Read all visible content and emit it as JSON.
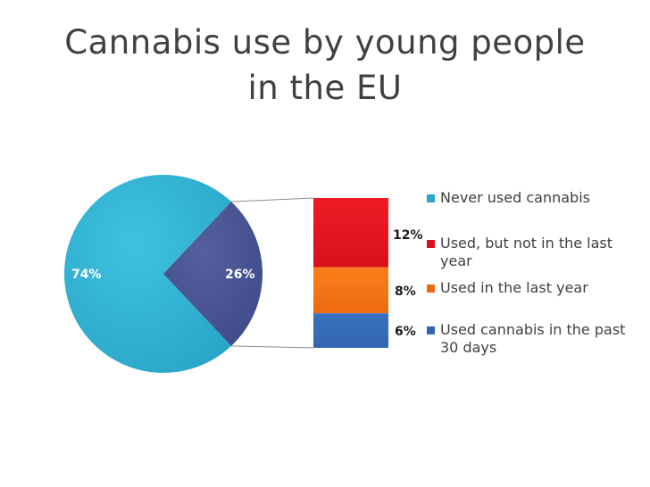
{
  "title": {
    "line1": "Cannabis use by young people",
    "line2": "in the EU"
  },
  "colors": {
    "pie_never": "#2aa6c8",
    "pie_used": "#3f4a8a",
    "bar_not_last_year": "#d8101c",
    "bar_last_year": "#ee6a10",
    "bar_past_30_days": "#3266b0",
    "connector": "#8c8c8c",
    "text": "#404040"
  },
  "chart_data": {
    "type": "bar-of-pie",
    "title": "Cannabis use by young people in the EU",
    "pie": {
      "slices": [
        {
          "label": "74%",
          "value": 74
        },
        {
          "label": "26%",
          "value": 26
        }
      ]
    },
    "bar": {
      "segments": [
        {
          "label": "12%",
          "value": 12
        },
        {
          "label": "8%",
          "value": 8
        },
        {
          "label": "6%",
          "value": 6
        }
      ]
    },
    "legend": [
      {
        "text": "Never used cannabis"
      },
      {
        "text": "Used, but not in the last year"
      },
      {
        "text": "Used in the last year"
      },
      {
        "text": "Used cannabis in the past 30 days"
      }
    ],
    "legend_position": "right"
  }
}
